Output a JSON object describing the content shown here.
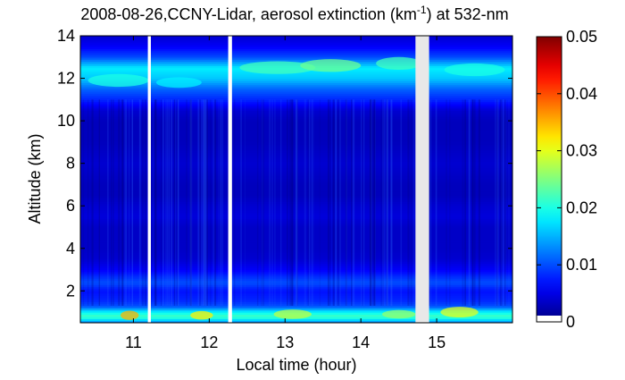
{
  "chart_data": {
    "type": "heatmap",
    "title_parts": {
      "prefix": "2008-08-26,CCNY-Lidar, aerosol extinction (km",
      "superscript": "-1",
      "suffix": ") at 532-nm"
    },
    "xlabel": "Local time (hour)",
    "ylabel": "Altitude (km)",
    "xlim": [
      10.3,
      16.0
    ],
    "ylim": [
      0.5,
      14.0
    ],
    "x_ticks": [
      11,
      12,
      13,
      14,
      15
    ],
    "x_tick_labels": [
      "11",
      "12",
      "13",
      "14",
      "15"
    ],
    "y_ticks": [
      2,
      4,
      6,
      8,
      10,
      12,
      14
    ],
    "y_tick_labels": [
      "2",
      "4",
      "6",
      "8",
      "10",
      "12",
      "14"
    ],
    "colorbar": {
      "range": [
        0,
        0.05
      ],
      "ticks": [
        0,
        0.01,
        0.02,
        0.03,
        0.04,
        0.05
      ],
      "tick_labels": [
        "0",
        "0.01",
        "0.02",
        "0.03",
        "0.04",
        "0.05"
      ],
      "colormap": "jet"
    },
    "no_data_intervals": [
      [
        11.19,
        11.23
      ],
      [
        12.25,
        12.3
      ],
      [
        14.72,
        14.9
      ]
    ],
    "profile": {
      "altitude_km": [
        0.5,
        0.8,
        1.0,
        1.3,
        1.6,
        2.0,
        2.4,
        2.6,
        3.0,
        3.5,
        4.0,
        5.0,
        5.5,
        6.0,
        6.5,
        7.0,
        8.0,
        9.0,
        10.0,
        10.5,
        11.0,
        11.5,
        12.0,
        12.5,
        13.0,
        13.5,
        14.0
      ],
      "extinction_km-1": [
        0.012,
        0.022,
        0.019,
        0.01,
        0.008,
        0.007,
        0.01,
        0.009,
        0.006,
        0.004,
        0.0035,
        0.0035,
        0.0045,
        0.004,
        0.003,
        0.003,
        0.004,
        0.003,
        0.003,
        0.004,
        0.008,
        0.011,
        0.016,
        0.018,
        0.01,
        0.006,
        0.004
      ]
    }
  }
}
